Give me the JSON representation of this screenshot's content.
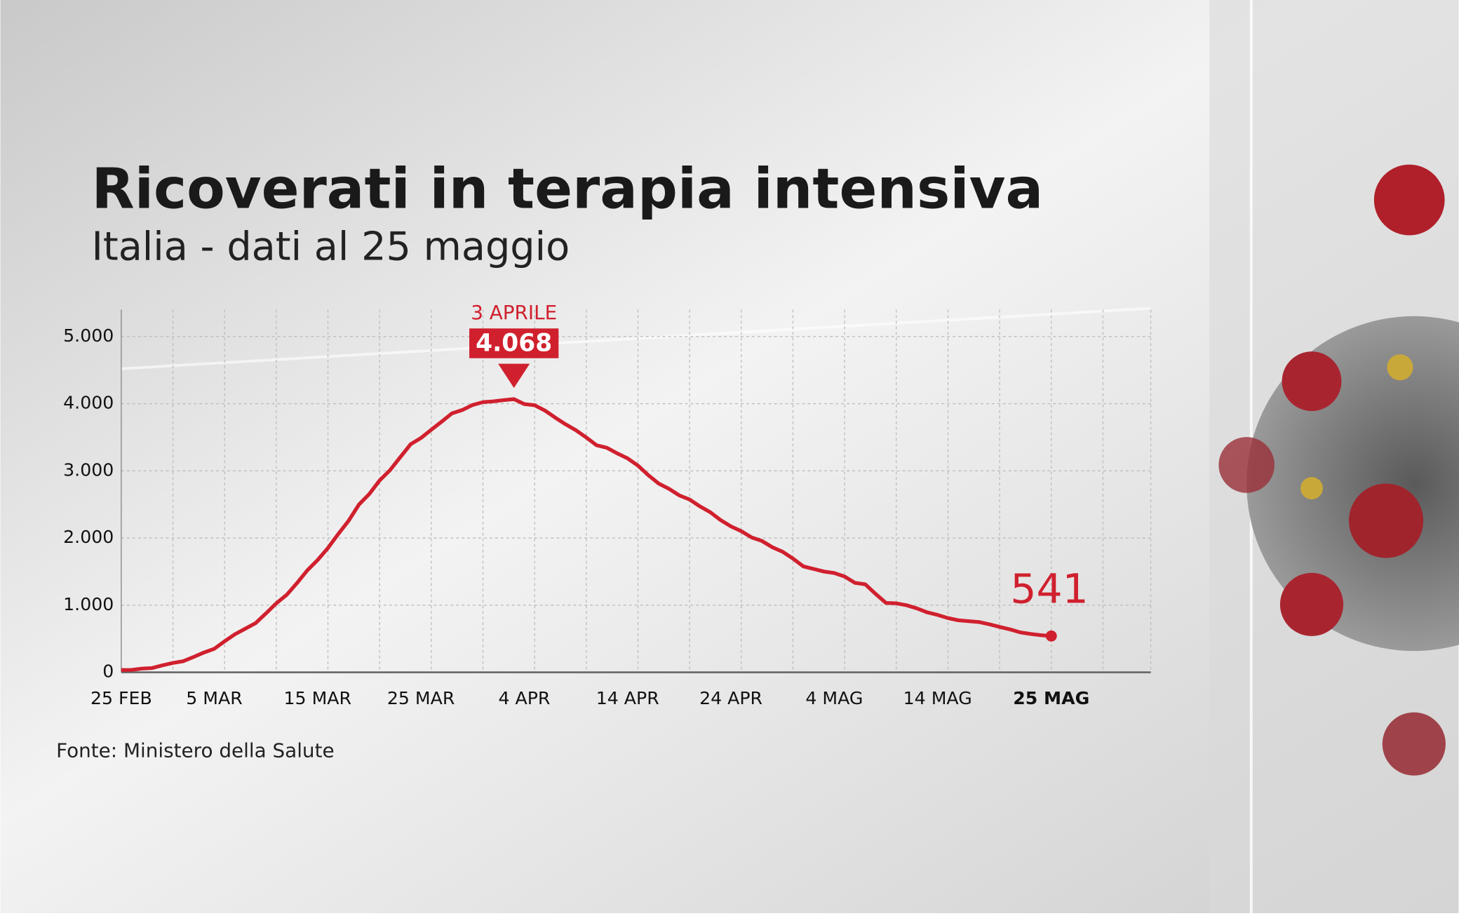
{
  "chart_data": {
    "type": "line",
    "title": "Ricoverati in terapia intensiva",
    "subtitle": "Italia - dati al 25 maggio",
    "source": "Fonte: Ministero della Salute",
    "peak_annotation": "3 APRILE",
    "color": "#d0202e",
    "grid": true,
    "categories": [
      "25 FEB",
      null,
      null,
      null,
      null,
      null,
      null,
      null,
      null,
      "5 MAR",
      null,
      null,
      null,
      null,
      null,
      null,
      null,
      null,
      null,
      "15 MAR",
      null,
      null,
      null,
      null,
      null,
      null,
      null,
      null,
      null,
      "25 MAR",
      null,
      null,
      null,
      null,
      null,
      null,
      null,
      null,
      null,
      "4 APR",
      null,
      null,
      null,
      null,
      null,
      null,
      null,
      null,
      null,
      "14 APR",
      null,
      null,
      null,
      null,
      null,
      null,
      null,
      null,
      null,
      "24 APR",
      null,
      null,
      null,
      null,
      null,
      null,
      null,
      null,
      null,
      "4 MAG",
      null,
      null,
      null,
      null,
      null,
      null,
      null,
      null,
      null,
      "14 MAG",
      null,
      null,
      null,
      null,
      null,
      null,
      null,
      null,
      null,
      null,
      "25 MAG"
    ],
    "values": [
      35,
      36,
      56,
      64,
      105,
      140,
      166,
      229,
      295,
      351,
      462,
      567,
      650,
      733,
      877,
      1028,
      1153,
      1328,
      1518,
      1672,
      1851,
      2060,
      2257,
      2498,
      2655,
      2857,
      3009,
      3204,
      3396,
      3489,
      3612,
      3732,
      3856,
      3906,
      3981,
      4023,
      4035,
      4053,
      4068,
      3994,
      3977,
      3898,
      3792,
      3693,
      3605,
      3497,
      3381,
      3343,
      3260,
      3186,
      3079,
      2936,
      2812,
      2733,
      2635,
      2573,
      2471,
      2384,
      2267,
      2173,
      2102,
      2009,
      1956,
      1863,
      1795,
      1694,
      1578,
      1539,
      1501,
      1479,
      1427,
      1333,
      1311,
      1168,
      1034,
      1027,
      999,
      952,
      893,
      855,
      808,
      775,
      762,
      749,
      716,
      676,
      640,
      595,
      572,
      553,
      541
    ],
    "value_labels": [
      null,
      null,
      null,
      null,
      null,
      null,
      null,
      null,
      null,
      null,
      null,
      null,
      null,
      null,
      null,
      null,
      null,
      null,
      null,
      null,
      null,
      null,
      null,
      null,
      null,
      null,
      null,
      null,
      null,
      null,
      null,
      null,
      null,
      null,
      null,
      null,
      null,
      null,
      "4.068",
      null,
      null,
      null,
      null,
      null,
      null,
      null,
      null,
      null,
      null,
      null,
      null,
      null,
      null,
      null,
      null,
      null,
      null,
      null,
      null,
      null,
      null,
      null,
      null,
      null,
      null,
      null,
      null,
      null,
      null,
      null,
      null,
      null,
      null,
      null,
      null,
      null,
      null,
      null,
      null,
      null,
      null,
      null,
      null,
      null,
      null,
      null,
      null,
      null,
      null,
      null,
      "541"
    ],
    "ylim": [
      0,
      5400
    ],
    "yticks": [
      0,
      {
        "value": 1000,
        "label": "1.000"
      },
      {
        "value": 2000,
        "label": "2.000"
      },
      {
        "value": 3000,
        "label": "3.000"
      },
      {
        "value": 4000,
        "label": "4.000"
      },
      {
        "value": 5000,
        "label": "5.000"
      }
    ]
  }
}
